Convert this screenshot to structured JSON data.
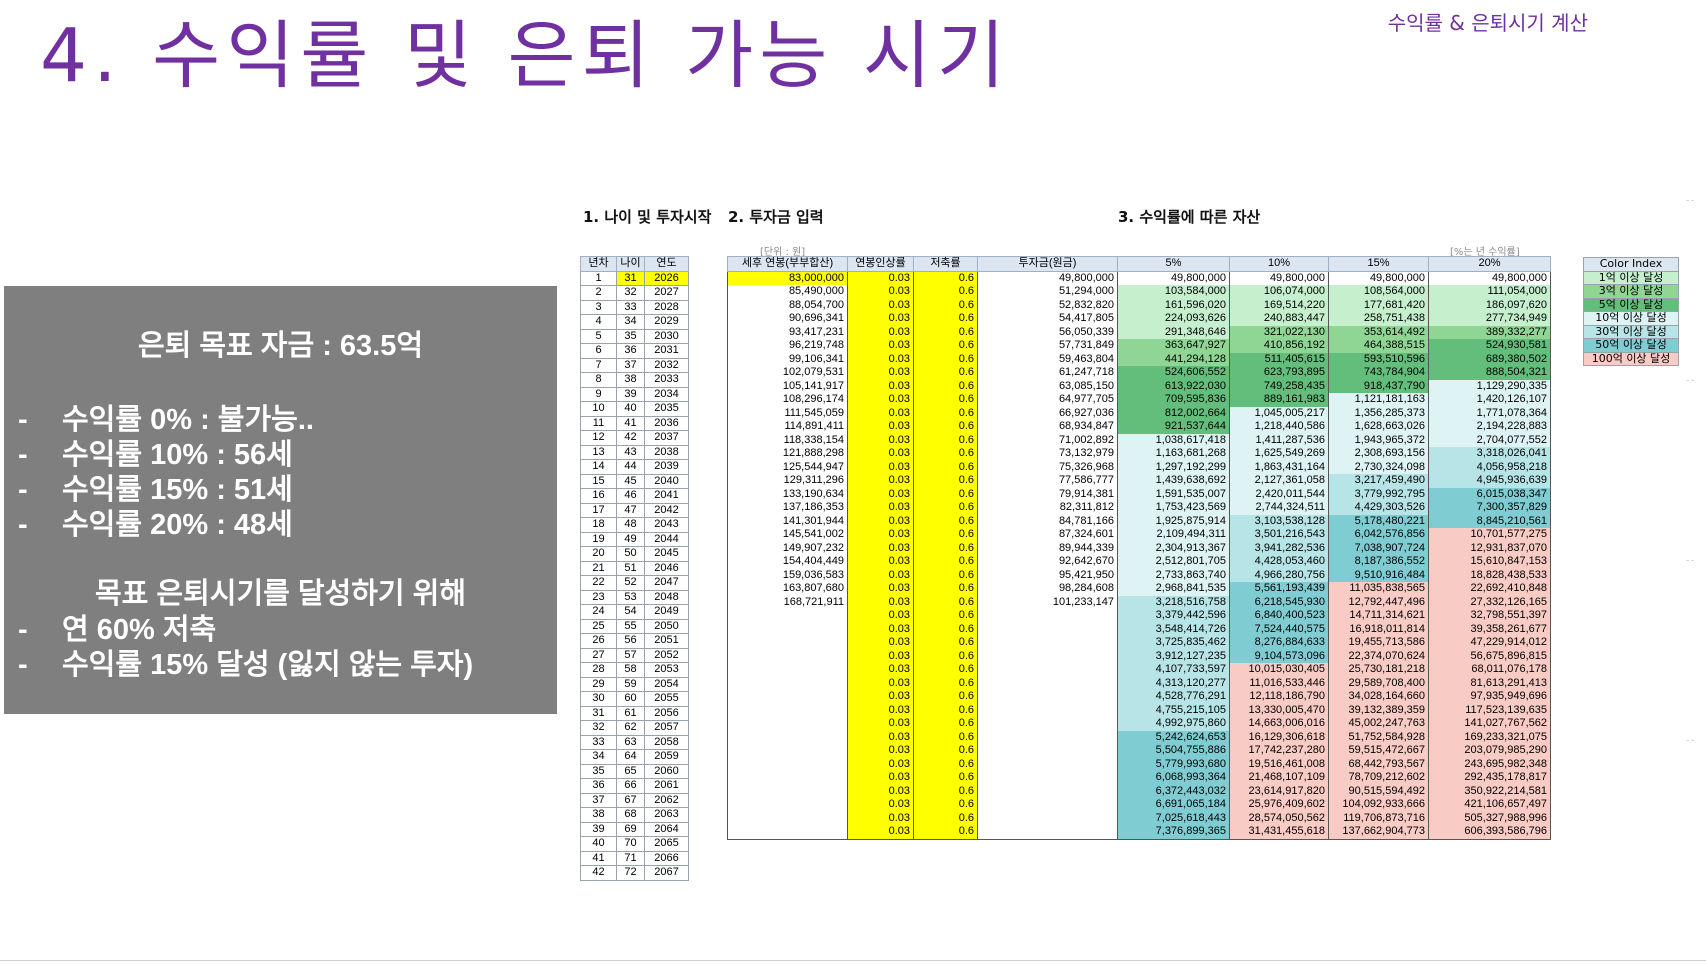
{
  "slide": {
    "title": "4. 수익률 및 은퇴 가능 시기",
    "corner_title": "수익률 & 은퇴시기 계산"
  },
  "summary": {
    "goal": "은퇴 목표 자금 : 63.5억",
    "rate_lines": [
      "수익률 0% : 불가능..",
      "수익률 10% : 56세",
      "수익률 15% : 51세",
      "수익률 20% : 48세"
    ],
    "plan_title": "목표 은퇴시기를 달성하기 위해",
    "plan_lines": [
      "연 60% 저축",
      "수익률 15% 달성 (잃지 않는 투자)"
    ],
    "bullet": "-"
  },
  "sections": {
    "s1": "1. 나이 및 투자시작",
    "s2": "2. 투자금 입력",
    "s3": "3. 수익률에 따른 자산",
    "unit_note": "[단위 : 원]",
    "rate_note": "[%는 년 수익률]"
  },
  "table1": {
    "headers": [
      "년차",
      "나이",
      "연도"
    ],
    "rows": [
      [
        "1",
        "31",
        "2026"
      ],
      [
        "2",
        "32",
        "2027"
      ],
      [
        "3",
        "33",
        "2028"
      ],
      [
        "4",
        "34",
        "2029"
      ],
      [
        "5",
        "35",
        "2030"
      ],
      [
        "6",
        "36",
        "2031"
      ],
      [
        "7",
        "37",
        "2032"
      ],
      [
        "8",
        "38",
        "2033"
      ],
      [
        "9",
        "39",
        "2034"
      ],
      [
        "10",
        "40",
        "2035"
      ],
      [
        "11",
        "41",
        "2036"
      ],
      [
        "12",
        "42",
        "2037"
      ],
      [
        "13",
        "43",
        "2038"
      ],
      [
        "14",
        "44",
        "2039"
      ],
      [
        "15",
        "45",
        "2040"
      ],
      [
        "16",
        "46",
        "2041"
      ],
      [
        "17",
        "47",
        "2042"
      ],
      [
        "18",
        "48",
        "2043"
      ],
      [
        "19",
        "49",
        "2044"
      ],
      [
        "20",
        "50",
        "2045"
      ],
      [
        "21",
        "51",
        "2046"
      ],
      [
        "22",
        "52",
        "2047"
      ],
      [
        "23",
        "53",
        "2048"
      ],
      [
        "24",
        "54",
        "2049"
      ],
      [
        "25",
        "55",
        "2050"
      ],
      [
        "26",
        "56",
        "2051"
      ],
      [
        "27",
        "57",
        "2052"
      ],
      [
        "28",
        "58",
        "2053"
      ],
      [
        "29",
        "59",
        "2054"
      ],
      [
        "30",
        "60",
        "2055"
      ],
      [
        "31",
        "61",
        "2056"
      ],
      [
        "32",
        "62",
        "2057"
      ],
      [
        "33",
        "63",
        "2058"
      ],
      [
        "34",
        "64",
        "2059"
      ],
      [
        "35",
        "65",
        "2060"
      ],
      [
        "36",
        "66",
        "2061"
      ],
      [
        "37",
        "67",
        "2062"
      ],
      [
        "38",
        "68",
        "2063"
      ],
      [
        "39",
        "69",
        "2064"
      ],
      [
        "40",
        "70",
        "2065"
      ],
      [
        "41",
        "71",
        "2066"
      ],
      [
        "42",
        "72",
        "2067"
      ]
    ]
  },
  "table2": {
    "headers": [
      "세후 연봉(부부합산)",
      "연봉인상률",
      "저축률",
      "투자금(원금)",
      "5%",
      "10%",
      "15%",
      "20%"
    ],
    "rows": [
      [
        "83,000,000",
        "0.03",
        "0.6",
        "49,800,000",
        "49,800,000",
        "49,800,000",
        "49,800,000",
        "49,800,000"
      ],
      [
        "85,490,000",
        "0.03",
        "0.6",
        "51,294,000",
        "103,584,000",
        "106,074,000",
        "108,564,000",
        "111,054,000"
      ],
      [
        "88,054,700",
        "0.03",
        "0.6",
        "52,832,820",
        "161,596,020",
        "169,514,220",
        "177,681,420",
        "186,097,620"
      ],
      [
        "90,696,341",
        "0.03",
        "0.6",
        "54,417,805",
        "224,093,626",
        "240,883,447",
        "258,751,438",
        "277,734,949"
      ],
      [
        "93,417,231",
        "0.03",
        "0.6",
        "56,050,339",
        "291,348,646",
        "321,022,130",
        "353,614,492",
        "389,332,277"
      ],
      [
        "96,219,748",
        "0.03",
        "0.6",
        "57,731,849",
        "363,647,927",
        "410,856,192",
        "464,388,515",
        "524,930,581"
      ],
      [
        "99,106,341",
        "0.03",
        "0.6",
        "59,463,804",
        "441,294,128",
        "511,405,615",
        "593,510,596",
        "689,380,502"
      ],
      [
        "102,079,531",
        "0.03",
        "0.6",
        "61,247,718",
        "524,606,552",
        "623,793,895",
        "743,784,904",
        "888,504,321"
      ],
      [
        "105,141,917",
        "0.03",
        "0.6",
        "63,085,150",
        "613,922,030",
        "749,258,435",
        "918,437,790",
        "1,129,290,335"
      ],
      [
        "108,296,174",
        "0.03",
        "0.6",
        "64,977,705",
        "709,595,836",
        "889,161,983",
        "1,121,181,163",
        "1,420,126,107"
      ],
      [
        "111,545,059",
        "0.03",
        "0.6",
        "66,927,036",
        "812,002,664",
        "1,045,005,217",
        "1,356,285,373",
        "1,771,078,364"
      ],
      [
        "114,891,411",
        "0.03",
        "0.6",
        "68,934,847",
        "921,537,644",
        "1,218,440,586",
        "1,628,663,026",
        "2,194,228,883"
      ],
      [
        "118,338,154",
        "0.03",
        "0.6",
        "71,002,892",
        "1,038,617,418",
        "1,411,287,536",
        "1,943,965,372",
        "2,704,077,552"
      ],
      [
        "121,888,298",
        "0.03",
        "0.6",
        "73,132,979",
        "1,163,681,268",
        "1,625,549,269",
        "2,308,693,156",
        "3,318,026,041"
      ],
      [
        "125,544,947",
        "0.03",
        "0.6",
        "75,326,968",
        "1,297,192,299",
        "1,863,431,164",
        "2,730,324,098",
        "4,056,958,218"
      ],
      [
        "129,311,296",
        "0.03",
        "0.6",
        "77,586,777",
        "1,439,638,692",
        "2,127,361,058",
        "3,217,459,490",
        "4,945,936,639"
      ],
      [
        "133,190,634",
        "0.03",
        "0.6",
        "79,914,381",
        "1,591,535,007",
        "2,420,011,544",
        "3,779,992,795",
        "6,015,038,347"
      ],
      [
        "137,186,353",
        "0.03",
        "0.6",
        "82,311,812",
        "1,753,423,569",
        "2,744,324,511",
        "4,429,303,526",
        "7,300,357,829"
      ],
      [
        "141,301,944",
        "0.03",
        "0.6",
        "84,781,166",
        "1,925,875,914",
        "3,103,538,128",
        "5,178,480,221",
        "8,845,210,561"
      ],
      [
        "145,541,002",
        "0.03",
        "0.6",
        "87,324,601",
        "2,109,494,311",
        "3,501,216,543",
        "6,042,576,856",
        "10,701,577,275"
      ],
      [
        "149,907,232",
        "0.03",
        "0.6",
        "89,944,339",
        "2,304,913,367",
        "3,941,282,536",
        "7,038,907,724",
        "12,931,837,070"
      ],
      [
        "154,404,449",
        "0.03",
        "0.6",
        "92,642,670",
        "2,512,801,705",
        "4,428,053,460",
        "8,187,386,552",
        "15,610,847,153"
      ],
      [
        "159,036,583",
        "0.03",
        "0.6",
        "95,421,950",
        "2,733,863,740",
        "4,966,280,756",
        "9,510,916,484",
        "18,828,438,533"
      ],
      [
        "163,807,680",
        "0.03",
        "0.6",
        "98,284,608",
        "2,968,841,535",
        "5,561,193,439",
        "11,035,838,565",
        "22,692,410,848"
      ],
      [
        "168,721,911",
        "0.03",
        "0.6",
        "101,233,147",
        "3,218,516,758",
        "6,218,545,930",
        "12,792,447,496",
        "27,332,126,165"
      ],
      [
        "",
        "0.03",
        "0.6",
        "",
        "3,379,442,596",
        "6,840,400,523",
        "14,711,314,621",
        "32,798,551,397"
      ],
      [
        "",
        "0.03",
        "0.6",
        "",
        "3,548,414,726",
        "7,524,440,575",
        "16,918,011,814",
        "39,358,261,677"
      ],
      [
        "",
        "0.03",
        "0.6",
        "",
        "3,725,835,462",
        "8,276,884,633",
        "19,455,713,586",
        "47,229,914,012"
      ],
      [
        "",
        "0.03",
        "0.6",
        "",
        "3,912,127,235",
        "9,104,573,096",
        "22,374,070,624",
        "56,675,896,815"
      ],
      [
        "",
        "0.03",
        "0.6",
        "",
        "4,107,733,597",
        "10,015,030,405",
        "25,730,181,218",
        "68,011,076,178"
      ],
      [
        "",
        "0.03",
        "0.6",
        "",
        "4,313,120,277",
        "11,016,533,446",
        "29,589,708,400",
        "81,613,291,413"
      ],
      [
        "",
        "0.03",
        "0.6",
        "",
        "4,528,776,291",
        "12,118,186,790",
        "34,028,164,660",
        "97,935,949,696"
      ],
      [
        "",
        "0.03",
        "0.6",
        "",
        "4,755,215,105",
        "13,330,005,470",
        "39,132,389,359",
        "117,523,139,635"
      ],
      [
        "",
        "0.03",
        "0.6",
        "",
        "4,992,975,860",
        "14,663,006,016",
        "45,002,247,763",
        "141,027,767,562"
      ],
      [
        "",
        "0.03",
        "0.6",
        "",
        "5,242,624,653",
        "16,129,306,618",
        "51,752,584,928",
        "169,233,321,075"
      ],
      [
        "",
        "0.03",
        "0.6",
        "",
        "5,504,755,886",
        "17,742,237,280",
        "59,515,472,667",
        "203,079,985,290"
      ],
      [
        "",
        "0.03",
        "0.6",
        "",
        "5,779,993,680",
        "19,516,461,008",
        "68,442,793,567",
        "243,695,982,348"
      ],
      [
        "",
        "0.03",
        "0.6",
        "",
        "6,068,993,364",
        "21,468,107,109",
        "78,709,212,602",
        "292,435,178,817"
      ],
      [
        "",
        "0.03",
        "0.6",
        "",
        "6,372,443,032",
        "23,614,917,820",
        "90,515,594,492",
        "350,922,214,581"
      ],
      [
        "",
        "0.03",
        "0.6",
        "",
        "6,691,065,184",
        "25,976,409,602",
        "104,092,933,666",
        "421,106,657,497"
      ],
      [
        "",
        "0.03",
        "0.6",
        "",
        "7,025,618,443",
        "28,574,050,562",
        "119,706,873,716",
        "505,327,988,996"
      ],
      [
        "",
        "0.03",
        "0.6",
        "",
        "7,376,899,365",
        "31,431,455,618",
        "137,662,904,773",
        "606,393,586,796"
      ]
    ]
  },
  "color_index": {
    "header": "Color Index",
    "items": [
      {
        "label": "1억 이상 달성",
        "color": "#c6efce"
      },
      {
        "label": "3억 이상 달성",
        "color": "#8fd694"
      },
      {
        "label": "5억 이상 달성",
        "color": "#63be7b"
      },
      {
        "label": "10억 이상 달성",
        "color": "#def3f3"
      },
      {
        "label": "30억 이상 달성",
        "color": "#b7e4e6"
      },
      {
        "label": "50억 이상 달성",
        "color": "#7fcdd2"
      },
      {
        "label": "100억 이상 달성",
        "color": "#f8cbc4"
      }
    ]
  },
  "colors": {
    "title": "#7030a0",
    "grey_box": "#7f7f7f",
    "highlight_yellow": "#ffff00",
    "header_blue": "#dce6f1"
  }
}
